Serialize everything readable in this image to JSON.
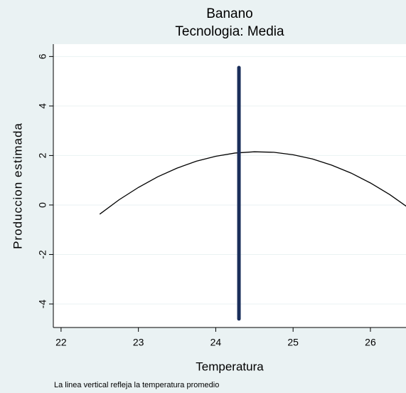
{
  "chart_data": {
    "type": "line",
    "title": "Banano",
    "subtitle": "Tecnologia: Media",
    "x_label": "Temperatura",
    "y_label": "Produccion estimada",
    "note": "La linea vertical refleja la temperatura promedio",
    "x": [
      22.5,
      22.75,
      23,
      23.25,
      23.5,
      23.75,
      24,
      24.25,
      24.5,
      24.75,
      25,
      25.25,
      25.5,
      25.75,
      26,
      26.25,
      26.5
    ],
    "series": [
      {
        "color": "#000000",
        "values": [
          -0.37,
          0.21,
          0.71,
          1.14,
          1.49,
          1.77,
          1.97,
          2.1,
          2.15,
          2.13,
          2.03,
          1.86,
          1.61,
          1.29,
          0.89,
          0.42,
          -0.13
        ]
      }
    ],
    "vline": {
      "x": 24.3,
      "y": [
        -4.6,
        5.55
      ],
      "color": "#1a2e5a"
    },
    "xlim": [
      21.9,
      26.46
    ],
    "xticks": [
      22,
      23,
      24,
      25,
      26
    ],
    "ylim": [
      -4.95,
      6.5
    ],
    "yticks": [
      -4,
      -2,
      0,
      2,
      4,
      6
    ],
    "grid": true
  }
}
